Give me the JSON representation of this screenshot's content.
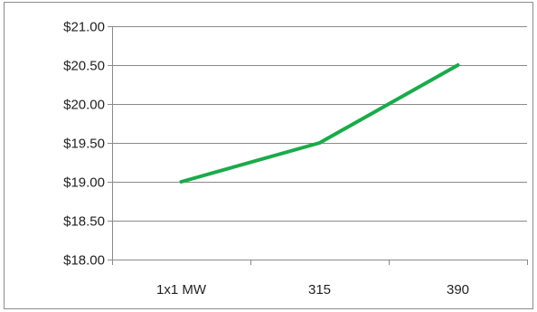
{
  "chart_data": {
    "type": "line",
    "title": "",
    "xlabel": "",
    "ylabel": "",
    "categories": [
      "1x1 MW",
      "315",
      "390"
    ],
    "series": [
      {
        "values": [
          19.0,
          19.5,
          20.5
        ],
        "color": "#1aab4b"
      }
    ],
    "ylim": [
      18.0,
      21.0
    ],
    "y_ticks": [
      18.0,
      18.5,
      19.0,
      19.5,
      20.0,
      20.5,
      21.0
    ],
    "y_tick_labels": [
      "$18.00",
      "$18.50",
      "$19.00",
      "$19.50",
      "$20.00",
      "$20.50",
      "$21.00"
    ],
    "grid": true,
    "legend": "none",
    "gridline_color": "#8a8a8a",
    "axis_color": "#8a8a8a"
  }
}
